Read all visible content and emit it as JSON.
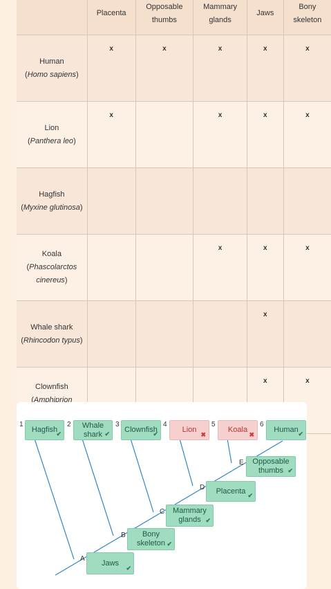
{
  "table": {
    "headers": [
      "",
      "Placenta",
      "Opposable thumbs",
      "Mammary glands",
      "Jaws",
      "Bony skeleton"
    ],
    "rows": [
      {
        "common": "Human",
        "scientific": "Homo sapiens",
        "marks": [
          "x",
          "x",
          "x",
          "x",
          "x"
        ]
      },
      {
        "common": "Lion",
        "scientific": "Panthera leo",
        "marks": [
          "x",
          "",
          "x",
          "x",
          "x"
        ]
      },
      {
        "common": "Hagfish",
        "scientific": "Myxine glutinosa",
        "marks": [
          "",
          "",
          "",
          "",
          ""
        ]
      },
      {
        "common": "Koala",
        "scientific": "Phascolarctos cinereus",
        "marks": [
          "",
          "",
          "x",
          "x",
          "x"
        ]
      },
      {
        "common": "Whale shark",
        "scientific": "Rhincodon typus",
        "marks": [
          "",
          "",
          "",
          "x",
          ""
        ]
      },
      {
        "common": "Clownfish",
        "scientific": "Amphiprion percula",
        "marks": [
          "",
          "",
          "",
          "x",
          "x"
        ]
      }
    ]
  },
  "cladogram": {
    "leaves": [
      {
        "num": "1",
        "label": "Hagfish",
        "status": "correct"
      },
      {
        "num": "2",
        "label": "Whale shark",
        "status": "correct"
      },
      {
        "num": "3",
        "label": "Clownfish",
        "status": "correct"
      },
      {
        "num": "4",
        "label": "Lion",
        "status": "wrong"
      },
      {
        "num": "5",
        "label": "Koala",
        "status": "wrong"
      },
      {
        "num": "6",
        "label": "Human",
        "status": "correct"
      }
    ],
    "traits": [
      {
        "node": "A",
        "label": "Jaws",
        "status": "correct"
      },
      {
        "node": "B",
        "label": "Bony skeleton",
        "status": "correct"
      },
      {
        "node": "C",
        "label": "Mammary glands",
        "status": "correct"
      },
      {
        "node": "D",
        "label": "Placenta",
        "status": "correct"
      },
      {
        "node": "E",
        "label": "Opposable thumbs",
        "status": "correct"
      }
    ],
    "colors": {
      "correct": "#9fdcc0",
      "wrong": "#f6cfcf",
      "line": "#2f86c6"
    },
    "icons": {
      "correct": "check-icon",
      "wrong": "cross-icon"
    }
  }
}
